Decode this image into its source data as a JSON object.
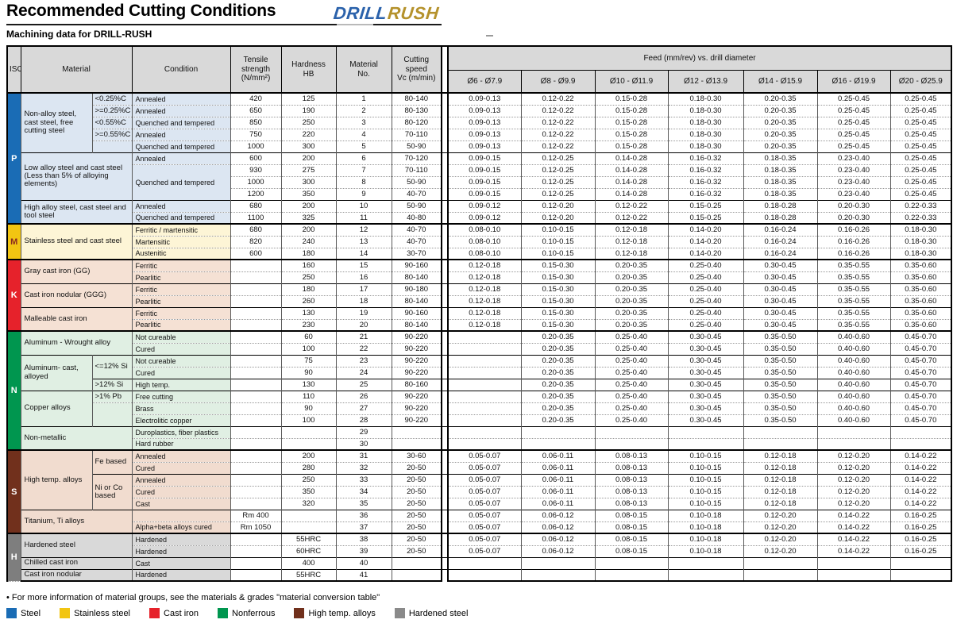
{
  "title": "Recommended Cutting Conditions",
  "subtitle": "Machining data for DRILL-RUSH",
  "logo": {
    "part1": "DRILL",
    "part2": "RUSH"
  },
  "table": {
    "headers": {
      "iso": "ISO",
      "material": "Material",
      "condition": "Condition",
      "tensile": "Tensile\nstrength\n(N/mm²)",
      "hardness": "Hardness\nHB",
      "material_no": "Material\nNo.",
      "cutting_speed": "Cutting\nspeed\nVc (m/min)",
      "feed": "Feed (mm/rev) vs. drill diameter"
    },
    "diameters": [
      "Ø6 - Ø7.9",
      "Ø8 - Ø9.9",
      "Ø10 - Ø11.9",
      "Ø12 - Ø13.9",
      "Ø14 - Ø15.9",
      "Ø16 - Ø19.9",
      "Ø20 - Ø25.9"
    ],
    "sections": {
      "P": {
        "band": "#1a6cb5",
        "letter": "#ffffff",
        "bg": "#dce6f2"
      },
      "M": {
        "band": "#f2c512",
        "letter": "#8a2a20",
        "bg": "#fdf5d6"
      },
      "K": {
        "band": "#e6222b",
        "letter": "#ffffff",
        "bg": "#f5e1d4"
      },
      "N": {
        "band": "#00964f",
        "letter": "#ffffff",
        "bg": "#e0efe3"
      },
      "S": {
        "band": "#71301c",
        "letter": "#ffffff",
        "bg": "#f1dccf"
      },
      "H": {
        "band": "#7e7e7e",
        "letter": "#ffffff",
        "bg": "#d9d9d9"
      }
    },
    "feed_sets": {
      "f1": [
        "0.09-0.13",
        "0.12-0.22",
        "0.15-0.28",
        "0.18-0.30",
        "0.20-0.35",
        "0.25-0.45",
        "0.25-0.45"
      ],
      "f2": [
        "0.09-0.15",
        "0.12-0.25",
        "0.14-0.28",
        "0.16-0.32",
        "0.18-0.35",
        "0.23-0.40",
        "0.25-0.45"
      ],
      "f3": [
        "0.09-0.12",
        "0.12-0.20",
        "0.12-0.22",
        "0.15-0.25",
        "0.18-0.28",
        "0.20-0.30",
        "0.22-0.33"
      ],
      "f4": [
        "0.08-0.10",
        "0.10-0.15",
        "0.12-0.18",
        "0.14-0.20",
        "0.16-0.24",
        "0.16-0.26",
        "0.18-0.30"
      ],
      "f5": [
        "0.12-0.18",
        "0.15-0.30",
        "0.20-0.35",
        "0.25-0.40",
        "0.30-0.45",
        "0.35-0.55",
        "0.35-0.60"
      ],
      "f6": [
        "",
        "0.20-0.35",
        "0.25-0.40",
        "0.30-0.45",
        "0.35-0.50",
        "0.40-0.60",
        "0.45-0.70"
      ],
      "f7": [
        "0.05-0.07",
        "0.06-0.11",
        "0.08-0.13",
        "0.10-0.15",
        "0.12-0.18",
        "0.12-0.20",
        "0.14-0.22"
      ],
      "f8": [
        "0.05-0.07",
        "0.06-0.12",
        "0.08-0.15",
        "0.10-0.18",
        "0.12-0.20",
        "0.14-0.22",
        "0.16-0.25"
      ],
      "fE": [
        "",
        "",
        "",
        "",
        "",
        "",
        ""
      ]
    },
    "rows": [
      {
        "sec": "P",
        "t": 2,
        "iso": [
          "P",
          11
        ],
        "mat": [
          "Non-alloy steel, cast steel, free cutting steel",
          5,
          1
        ],
        "sub": [
          "<0.25%C",
          1
        ],
        "cond": [
          "Annealed",
          1
        ],
        "c": [
          "420",
          "125",
          "1",
          "80-140"
        ],
        "f": "f1"
      },
      {
        "sec": "P",
        "t": 0,
        "sub": [
          ">=0.25%C",
          1
        ],
        "cond": [
          "Annealed",
          1
        ],
        "c": [
          "650",
          "190",
          "2",
          "80-130"
        ],
        "f": "f1"
      },
      {
        "sec": "P",
        "t": 0,
        "sub": [
          "<0.55%C",
          1
        ],
        "cond": [
          "Quenched and tempered",
          1
        ],
        "c": [
          "850",
          "250",
          "3",
          "80-120"
        ],
        "f": "f1"
      },
      {
        "sec": "P",
        "t": 0,
        "sub": [
          ">=0.55%C",
          1
        ],
        "cond": [
          "Annealed",
          1
        ],
        "c": [
          "750",
          "220",
          "4",
          "70-110"
        ],
        "f": "f1"
      },
      {
        "sec": "P",
        "t": 0,
        "sub": [
          "",
          1
        ],
        "cond": [
          "Quenched and tempered",
          1
        ],
        "c": [
          "1000",
          "300",
          "5",
          "50-90"
        ],
        "f": "f1"
      },
      {
        "sec": "P",
        "t": 1,
        "mat": [
          "Low alloy steel and cast steel (Less than 5% of alloying elements)",
          4,
          2
        ],
        "cond": [
          "Annealed",
          1
        ],
        "c": [
          "600",
          "200",
          "6",
          "70-120"
        ],
        "f": "f2"
      },
      {
        "sec": "P",
        "t": 0,
        "cond": [
          "Quenched and tempered",
          3
        ],
        "c": [
          "930",
          "275",
          "7",
          "70-110"
        ],
        "f": "f2"
      },
      {
        "sec": "P",
        "t": 0,
        "c": [
          "1000",
          "300",
          "8",
          "50-90"
        ],
        "f": "f2"
      },
      {
        "sec": "P",
        "t": 0,
        "c": [
          "1200",
          "350",
          "9",
          "40-70"
        ],
        "f": "f2"
      },
      {
        "sec": "P",
        "t": 1,
        "mat": [
          "High alloy steel, cast steel and tool steel",
          2,
          2
        ],
        "cond": [
          "Annealed",
          1
        ],
        "c": [
          "680",
          "200",
          "10",
          "50-90"
        ],
        "f": "f3"
      },
      {
        "sec": "P",
        "t": 0,
        "cond": [
          "Quenched and tempered",
          1
        ],
        "c": [
          "1100",
          "325",
          "11",
          "40-80"
        ],
        "f": "f3"
      },
      {
        "sec": "M",
        "t": 2,
        "iso": [
          "M",
          3
        ],
        "mat": [
          "Stainless steel and cast steel",
          3,
          2
        ],
        "cond": [
          "Ferritic / martensitic",
          1
        ],
        "c": [
          "680",
          "200",
          "12",
          "40-70"
        ],
        "f": "f4"
      },
      {
        "sec": "M",
        "t": 0,
        "cond": [
          "Martensitic",
          1
        ],
        "c": [
          "820",
          "240",
          "13",
          "40-70"
        ],
        "f": "f4"
      },
      {
        "sec": "M",
        "t": 0,
        "cond": [
          "Austenitic",
          1
        ],
        "c": [
          "600",
          "180",
          "14",
          "30-70"
        ],
        "f": "f4"
      },
      {
        "sec": "K",
        "t": 2,
        "iso": [
          "K",
          6
        ],
        "mat": [
          "Gray cast iron (GG)",
          2,
          2
        ],
        "cond": [
          "Ferritic",
          1
        ],
        "c": [
          "",
          "160",
          "15",
          "90-160"
        ],
        "f": "f5"
      },
      {
        "sec": "K",
        "t": 0,
        "cond": [
          "Pearlitic",
          1
        ],
        "c": [
          "",
          "250",
          "16",
          "80-140"
        ],
        "f": "f5"
      },
      {
        "sec": "K",
        "t": 1,
        "mat": [
          "Cast iron nodular (GGG)",
          2,
          2
        ],
        "cond": [
          "Ferritic",
          1
        ],
        "c": [
          "",
          "180",
          "17",
          "90-180"
        ],
        "f": "f5"
      },
      {
        "sec": "K",
        "t": 0,
        "cond": [
          "Pearlitic",
          1
        ],
        "c": [
          "",
          "260",
          "18",
          "80-140"
        ],
        "f": "f5"
      },
      {
        "sec": "K",
        "t": 1,
        "mat": [
          "Malleable cast iron",
          2,
          2
        ],
        "cond": [
          "Ferritic",
          1
        ],
        "c": [
          "",
          "130",
          "19",
          "90-160"
        ],
        "f": "f5"
      },
      {
        "sec": "K",
        "t": 0,
        "cond": [
          "Pearlitic",
          1
        ],
        "c": [
          "",
          "230",
          "20",
          "80-140"
        ],
        "f": "f5"
      },
      {
        "sec": "N",
        "t": 2,
        "iso": [
          "N",
          10
        ],
        "mat": [
          "Aluminum - Wrought alloy",
          2,
          2
        ],
        "cond": [
          "Not cureable",
          1
        ],
        "c": [
          "",
          "60",
          "21",
          "90-220"
        ],
        "f": "f6"
      },
      {
        "sec": "N",
        "t": 0,
        "cond": [
          "Cured",
          1
        ],
        "c": [
          "",
          "100",
          "22",
          "90-220"
        ],
        "f": "f6"
      },
      {
        "sec": "N",
        "t": 1,
        "mat": [
          "Aluminum- cast, alloyed",
          3,
          1
        ],
        "sub": [
          "<=12% Si",
          2
        ],
        "cond": [
          "Not cureable",
          1
        ],
        "c": [
          "",
          "75",
          "23",
          "90-220"
        ],
        "f": "f6"
      },
      {
        "sec": "N",
        "t": 0,
        "cond": [
          "Cured",
          1
        ],
        "c": [
          "",
          "90",
          "24",
          "90-220"
        ],
        "f": "f6"
      },
      {
        "sec": "N",
        "t": 1,
        "sub": [
          ">12% Si",
          1
        ],
        "cond": [
          "High temp.",
          1
        ],
        "c": [
          "",
          "130",
          "25",
          "80-160"
        ],
        "f": "f6"
      },
      {
        "sec": "N",
        "t": 1,
        "mat": [
          "Copper alloys",
          3,
          1
        ],
        "sub": [
          ">1% Pb",
          1
        ],
        "cond": [
          "Free cutting",
          1
        ],
        "c": [
          "",
          "110",
          "26",
          "90-220"
        ],
        "f": "f6"
      },
      {
        "sec": "N",
        "t": 0,
        "sub": [
          "",
          2
        ],
        "cond": [
          "Brass",
          1
        ],
        "c": [
          "",
          "90",
          "27",
          "90-220"
        ],
        "f": "f6"
      },
      {
        "sec": "N",
        "t": 0,
        "cond": [
          "Electrolitic copper",
          1
        ],
        "c": [
          "",
          "100",
          "28",
          "90-220"
        ],
        "f": "f6"
      },
      {
        "sec": "N",
        "t": 1,
        "mat": [
          "Non-metallic",
          2,
          2
        ],
        "cond": [
          "Duroplastics, fiber plastics",
          1
        ],
        "c": [
          "",
          "",
          "29",
          ""
        ],
        "f": "fE"
      },
      {
        "sec": "N",
        "t": 0,
        "cond": [
          "Hard rubber",
          1
        ],
        "c": [
          "",
          "",
          "30",
          ""
        ],
        "f": "fE"
      },
      {
        "sec": "S",
        "t": 2,
        "iso": [
          "S",
          7
        ],
        "mat": [
          "High temp. alloys",
          5,
          1
        ],
        "sub": [
          "Fe based",
          2
        ],
        "cond": [
          "Annealed",
          1
        ],
        "c": [
          "",
          "200",
          "31",
          "30-60"
        ],
        "f": "f7"
      },
      {
        "sec": "S",
        "t": 0,
        "cond": [
          "Cured",
          1
        ],
        "c": [
          "",
          "280",
          "32",
          "20-50"
        ],
        "f": "f7"
      },
      {
        "sec": "S",
        "t": 1,
        "sub": [
          "Ni or Co based",
          3
        ],
        "cond": [
          "Annealed",
          1
        ],
        "c": [
          "",
          "250",
          "33",
          "20-50"
        ],
        "f": "f7"
      },
      {
        "sec": "S",
        "t": 0,
        "cond": [
          "Cured",
          1
        ],
        "c": [
          "",
          "350",
          "34",
          "20-50"
        ],
        "f": "f7"
      },
      {
        "sec": "S",
        "t": 0,
        "cond": [
          "Cast",
          1
        ],
        "c": [
          "",
          "320",
          "35",
          "20-50"
        ],
        "f": "f7"
      },
      {
        "sec": "S",
        "t": 1,
        "mat": [
          "Titanium, Ti alloys",
          2,
          2
        ],
        "cond": [
          "",
          1
        ],
        "c": [
          "Rm 400",
          "",
          "36",
          "20-50"
        ],
        "f": "f8"
      },
      {
        "sec": "S",
        "t": 0,
        "cond": [
          "Alpha+beta alloys cured",
          1
        ],
        "c": [
          "Rm 1050",
          "",
          "37",
          "20-50"
        ],
        "f": "f8"
      },
      {
        "sec": "H",
        "t": 2,
        "iso": [
          "H",
          4
        ],
        "mat": [
          "Hardened steel",
          2,
          2
        ],
        "cond": [
          "Hardened",
          1
        ],
        "c": [
          "",
          "55HRC",
          "38",
          "20-50"
        ],
        "f": "f8"
      },
      {
        "sec": "H",
        "t": 0,
        "cond": [
          "Hardened",
          1
        ],
        "c": [
          "",
          "60HRC",
          "39",
          "20-50"
        ],
        "f": "f8"
      },
      {
        "sec": "H",
        "t": 1,
        "mat": [
          "Chilled cast iron",
          1,
          2
        ],
        "cond": [
          "Cast",
          1
        ],
        "c": [
          "",
          "400",
          "40",
          ""
        ],
        "f": "fE"
      },
      {
        "sec": "H",
        "t": 1,
        "mat": [
          "Cast iron nodular",
          1,
          2
        ],
        "cond": [
          "Hardened",
          1
        ],
        "c": [
          "",
          "55HRC",
          "41",
          ""
        ],
        "f": "fE"
      }
    ]
  },
  "footnote": "• For more information of material groups, see the materials & grades \"material conversion table\"",
  "legend": [
    {
      "label": "Steel",
      "color": "#1a6cb5"
    },
    {
      "label": "Stainless steel",
      "color": "#f2c512"
    },
    {
      "label": "Cast iron",
      "color": "#e6222b"
    },
    {
      "label": "Nonferrous",
      "color": "#00964f"
    },
    {
      "label": "High temp. alloys",
      "color": "#71301c"
    },
    {
      "label": "Hardened steel",
      "color": "#8a8a8a"
    }
  ]
}
